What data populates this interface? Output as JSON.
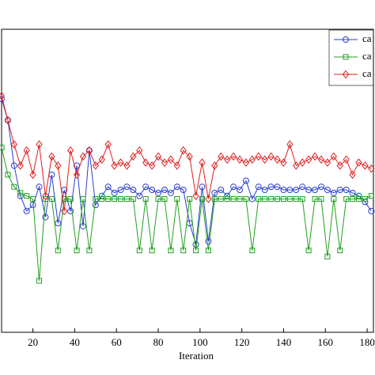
{
  "chart_data": {
    "type": "line",
    "x_label": "Iteration",
    "x": [
      5,
      8,
      11,
      14,
      17,
      20,
      23,
      26,
      29,
      32,
      35,
      38,
      41,
      44,
      47,
      50,
      53,
      56,
      59,
      62,
      65,
      68,
      71,
      74,
      77,
      80,
      83,
      86,
      89,
      92,
      95,
      98,
      101,
      104,
      107,
      110,
      113,
      116,
      119,
      122,
      125,
      128,
      131,
      134,
      137,
      140,
      143,
      146,
      149,
      152,
      155,
      158,
      161,
      164,
      167,
      170,
      173,
      176,
      179,
      182
    ],
    "series": [
      {
        "name": "ca",
        "color": "#2a3fd0",
        "marker": "circle",
        "values": [
          77,
          70,
          55,
          45,
          40,
          42,
          48,
          38,
          52,
          36,
          47,
          40,
          55,
          35,
          60,
          42,
          45,
          48,
          46,
          47,
          48,
          47,
          45,
          48,
          47,
          46,
          47,
          46,
          48,
          47,
          36,
          29,
          48,
          30,
          46,
          47,
          45,
          48,
          47,
          50,
          44,
          48,
          47,
          48,
          48,
          47,
          47,
          47,
          48,
          47,
          47,
          48,
          47,
          46,
          47,
          47,
          46,
          45,
          43,
          40
        ]
      },
      {
        "name": "ca",
        "color": "#22a020",
        "marker": "square",
        "values": [
          61,
          52,
          48,
          46,
          45,
          44,
          17,
          44,
          44,
          27,
          44,
          44,
          27,
          44,
          27,
          44,
          44,
          44,
          44,
          44,
          44,
          44,
          27,
          44,
          27,
          44,
          44,
          27,
          44,
          27,
          44,
          27,
          44,
          27,
          44,
          44,
          44,
          44,
          44,
          44,
          27,
          44,
          44,
          44,
          44,
          44,
          44,
          44,
          44,
          27,
          44,
          44,
          25,
          44,
          27,
          44,
          44,
          44,
          44,
          45
        ]
      },
      {
        "name": "ca",
        "color": "#e02020",
        "marker": "diamond",
        "values": [
          78,
          70,
          62,
          55,
          60,
          52,
          62,
          45,
          58,
          55,
          40,
          60,
          52,
          58,
          60,
          55,
          57,
          62,
          55,
          56,
          55,
          58,
          60,
          56,
          55,
          58,
          56,
          57,
          55,
          60,
          58,
          45,
          56,
          44,
          55,
          58,
          57,
          58,
          57,
          56,
          57,
          58,
          57,
          58,
          57,
          56,
          62,
          55,
          56,
          57,
          58,
          57,
          56,
          58,
          55,
          57,
          52,
          56,
          55,
          54
        ]
      }
    ],
    "xlim": [
      5,
      183
    ],
    "xticks": [
      20,
      40,
      60,
      80,
      100,
      120,
      140,
      160,
      180
    ],
    "ylim": [
      0,
      100
    ]
  }
}
